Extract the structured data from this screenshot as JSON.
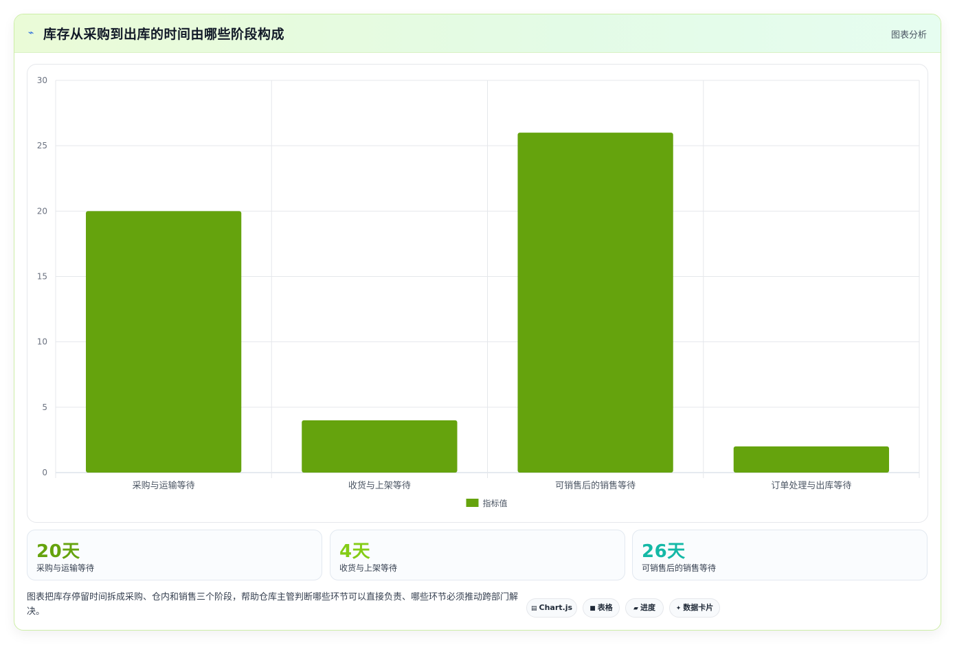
{
  "header": {
    "icon": "chart-line-icon",
    "title": "库存从采购到出库的时间由哪些阶段构成",
    "action_label": "图表分析"
  },
  "chart_data": {
    "type": "bar",
    "categories": [
      "采购与运输等待",
      "收货与上架等待",
      "可销售后的销售等待",
      "订单处理与出库等待"
    ],
    "series": [
      {
        "name": "指标值",
        "values": [
          20,
          4,
          26,
          2
        ],
        "color": "#65a30d"
      }
    ],
    "ylim": [
      0,
      30
    ],
    "yticks": [
      0,
      5,
      10,
      15,
      20,
      25,
      30
    ],
    "grid": true,
    "legend": "bottom-center"
  },
  "stats": [
    {
      "value": "20天",
      "label": "采购与运输等待",
      "color": "#65a30d"
    },
    {
      "value": "4天",
      "label": "收货与上架等待",
      "color": "#84cc16"
    },
    {
      "value": "26天",
      "label": "可销售后的销售等待",
      "color": "#14b8a6"
    }
  ],
  "footer": {
    "description": "图表把库存停留时间拆成采购、仓内和销售三个阶段，帮助仓库主管判断哪些环节可以直接负责、哪些环节必须推动跨部门解决。"
  },
  "tags": [
    {
      "icon": "table-icon",
      "glyph": "▤",
      "label": "Chart.js"
    },
    {
      "icon": "grid-icon",
      "glyph": "■",
      "label": "表格"
    },
    {
      "icon": "progress-icon",
      "glyph": "▰",
      "label": "进度"
    },
    {
      "icon": "sparkle-icon",
      "glyph": "✦",
      "label": "数据卡片"
    }
  ]
}
